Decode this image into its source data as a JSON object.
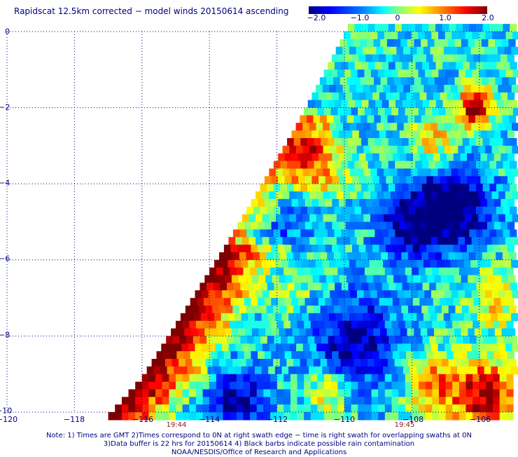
{
  "title": "Rapidscat 12.5km corrected − model winds 20150614 ascending",
  "colorbar": {
    "ticks": [
      "−2.0",
      "−1.0",
      "0",
      "1.0",
      "2.0"
    ],
    "range": [
      -2.0,
      2.0
    ],
    "colors": [
      "#00007f",
      "#0000ff",
      "#007fff",
      "#00ffff",
      "#7fff7f",
      "#ffff00",
      "#ff7f00",
      "#ff0000",
      "#7f0000"
    ]
  },
  "axes": {
    "x_ticks": [
      "−120",
      "−118",
      "−116",
      "−114",
      "−112",
      "−110",
      "−108",
      "−106"
    ],
    "x_range": [
      -120,
      -105
    ],
    "y_ticks": [
      "0",
      "−2",
      "−4",
      "−6",
      "−8",
      "−10"
    ],
    "y_range": [
      0,
      -10
    ],
    "grid": "dotted"
  },
  "time_labels": [
    {
      "text": "19:44",
      "lon": -115.0
    },
    {
      "text": "19:45",
      "lon": -108.2
    }
  ],
  "notes": [
    "Note: 1) Times are GMT 2)Times correspond to 0N at right swath edge − time is right swath for overlapping swaths at 0N",
    "3)Data buffer is 22 hrs for 20150614 4) Black barbs indicate possible rain contamination",
    "NOAA/NESDIS/Office of Research and Applications"
  ],
  "chart_data": {
    "type": "heatmap",
    "title": "Rapidscat 12.5km corrected − model winds 20150614 ascending",
    "xlabel": "",
    "ylabel": "",
    "xlim": [
      -120,
      -105
    ],
    "ylim": [
      -10,
      0
    ],
    "value_range": [
      -2.0,
      2.0
    ],
    "swath_left_edge": [
      [
        -109.9,
        0.2
      ],
      [
        -111.5,
        -2.5
      ],
      [
        -113.5,
        -5.5
      ],
      [
        -116.0,
        -9.0
      ],
      [
        -117.0,
        -10.0
      ]
    ],
    "features": [
      {
        "region": "west swath edge, lat -6 to -10",
        "value": 2.0
      },
      {
        "region": "lon -111, lat -3.5",
        "value": 1.6
      },
      {
        "region": "lon -107, lat -4.5",
        "value": -2.0
      },
      {
        "region": "lon -106, lat -9.5",
        "value": 2.0
      },
      {
        "region": "lon -110, lat -8",
        "value": -1.6
      },
      {
        "region": "lon -106, lat -2",
        "value": 2.0
      }
    ]
  }
}
